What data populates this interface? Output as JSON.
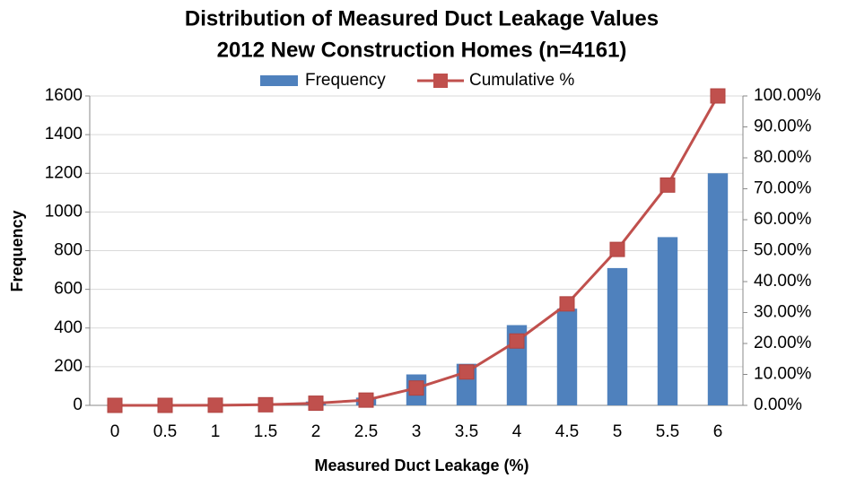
{
  "chart_data": {
    "type": "bar_line",
    "title": "Distribution of Measured Duct Leakage Values",
    "subtitle": "2012 New Construction Homes (n=4161)",
    "x_label": "Measured Duct Leakage (%)",
    "y_label": "Frequency",
    "categories": [
      "0",
      "0.5",
      "1",
      "1.5",
      "2",
      "2.5",
      "3",
      "3.5",
      "4",
      "4.5",
      "5",
      "5.5",
      "6"
    ],
    "series": [
      {
        "name": "Frequency",
        "color": "#4f81bd",
        "type": "bar",
        "axis": "y",
        "values": [
          0,
          0,
          2,
          8,
          20,
          40,
          160,
          215,
          415,
          500,
          710,
          870,
          1200
        ]
      },
      {
        "name": "Cumulative %",
        "color": "#c0504d",
        "type": "line",
        "axis": "y2",
        "values": [
          0,
          0,
          0.05,
          0.2,
          0.7,
          1.7,
          5.6,
          10.8,
          20.8,
          32.8,
          50.4,
          71.2,
          100
        ]
      }
    ],
    "ylim": [
      0,
      1600
    ],
    "yticks": [
      0,
      200,
      400,
      600,
      800,
      1000,
      1200,
      1400,
      1600
    ],
    "y2lim": [
      0,
      100
    ],
    "y2ticks": [
      {
        "value": 0,
        "label": "0.00%"
      },
      {
        "value": 10,
        "label": "10.00%"
      },
      {
        "value": 20,
        "label": "20.00%"
      },
      {
        "value": 30,
        "label": "30.00%"
      },
      {
        "value": 40,
        "label": "40.00%"
      },
      {
        "value": 50,
        "label": "50.00%"
      },
      {
        "value": 60,
        "label": "60.00%"
      },
      {
        "value": 70,
        "label": "70.00%"
      },
      {
        "value": 80,
        "label": "80.00%"
      },
      {
        "value": 90,
        "label": "90.00%"
      },
      {
        "value": 100,
        "label": "100.00%"
      }
    ],
    "grid": true,
    "legend": "top"
  }
}
